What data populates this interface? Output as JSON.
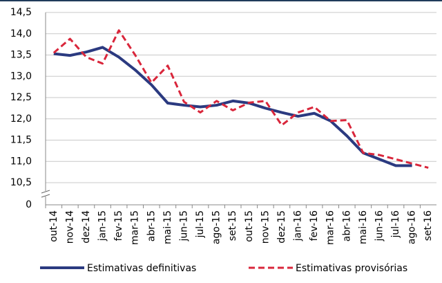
{
  "chart_data": {
    "type": "line",
    "categories": [
      "out-14",
      "nov-14",
      "dez-14",
      "jan-15",
      "fev-15",
      "mar-15",
      "abr-15",
      "mai-15",
      "jun-15",
      "jul-15",
      "ago-15",
      "set-15",
      "out-15",
      "nov-15",
      "dez-15",
      "jan-16",
      "fev-16",
      "mar-16",
      "abr-16",
      "mai-16",
      "jun-16",
      "jul-16",
      "ago-16",
      "set-16"
    ],
    "series": [
      {
        "name": "Estimativas definitivas",
        "color": "#2b3a80",
        "dashed": false,
        "values": [
          13.53,
          13.49,
          13.57,
          13.68,
          13.45,
          13.15,
          12.8,
          12.37,
          12.32,
          12.28,
          12.32,
          12.42,
          12.37,
          12.25,
          12.15,
          12.06,
          12.13,
          11.95,
          11.6,
          11.2,
          11.05,
          10.9,
          10.9,
          null
        ]
      },
      {
        "name": "Estimativas provisórias",
        "color": "#d9263b",
        "dashed": true,
        "values": [
          13.55,
          13.88,
          13.45,
          13.3,
          14.08,
          13.5,
          12.85,
          13.25,
          12.4,
          12.15,
          12.42,
          12.2,
          12.38,
          12.42,
          11.85,
          12.15,
          12.28,
          11.95,
          11.97,
          11.2,
          11.15,
          11.05,
          10.95,
          10.85
        ]
      }
    ],
    "ylim": [
      0,
      14.5
    ],
    "yticks": [
      0,
      {
        "value": 10.5,
        "label": "10,5"
      },
      {
        "value": 11.0,
        "label": "11,0"
      },
      {
        "value": 11.5,
        "label": "11,5"
      },
      {
        "value": 12.0,
        "label": "12,0"
      },
      {
        "value": 12.5,
        "label": "12,5"
      },
      {
        "value": 13.0,
        "label": "13,0"
      },
      {
        "value": 13.5,
        "label": "13,5"
      },
      {
        "value": 14.0,
        "label": "14,0"
      },
      {
        "value": 14.5,
        "label": "14,5"
      }
    ],
    "grid": true
  }
}
